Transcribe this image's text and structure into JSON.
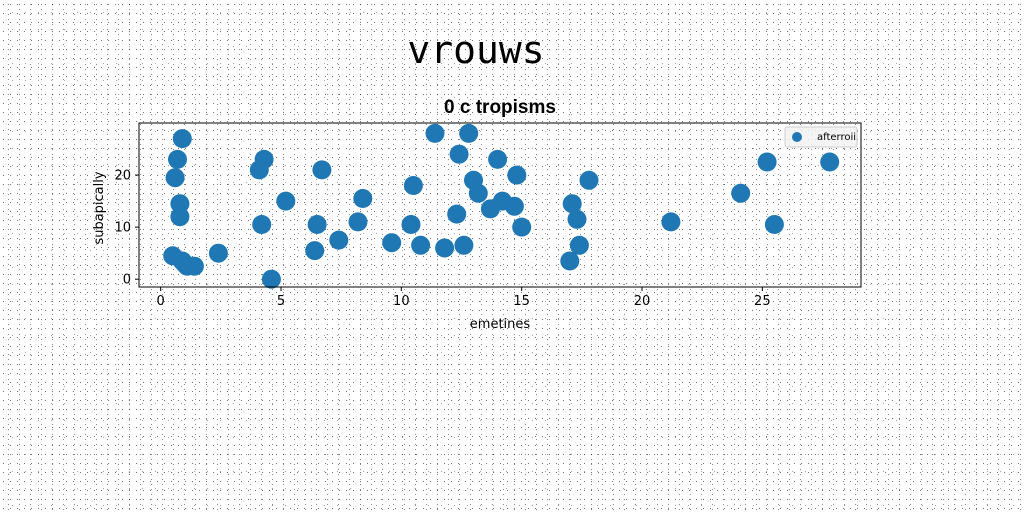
{
  "page_title": "vrouws",
  "chart_data": {
    "type": "scatter",
    "title": "0 c tropisms",
    "xlabel": "emetines",
    "ylabel": "subapically",
    "xlim": [
      -0.9,
      29.1
    ],
    "ylim": [
      -1.5,
      30
    ],
    "xticks": [
      0,
      5,
      10,
      15,
      20,
      25
    ],
    "yticks": [
      0,
      10,
      20
    ],
    "grid": false,
    "legend_position": "top-right",
    "marker_color": "#1f77b4",
    "series": [
      {
        "name": "afterroii",
        "x": [
          0.5,
          0.8,
          0.9,
          0.6,
          0.7,
          0.8,
          0.9,
          1.0,
          1.1,
          1.4,
          2.4,
          4.1,
          4.2,
          4.3,
          4.6,
          5.2,
          6.4,
          6.5,
          6.7,
          7.4,
          8.2,
          8.4,
          9.6,
          10.4,
          10.5,
          10.8,
          11.4,
          11.8,
          12.3,
          12.4,
          12.6,
          12.8,
          13.0,
          13.2,
          13.7,
          14.0,
          14.2,
          14.7,
          14.8,
          15.0,
          17.0,
          17.1,
          17.3,
          17.4,
          17.8,
          21.2,
          24.1,
          25.2,
          25.5,
          27.8
        ],
        "y": [
          4.5,
          12,
          27,
          19.5,
          23,
          14.5,
          3.5,
          3,
          2.5,
          2.5,
          5,
          21,
          10.5,
          23,
          0,
          15,
          5.5,
          10.5,
          21,
          7.5,
          11,
          15.5,
          7,
          10.5,
          18,
          6.5,
          28,
          6,
          12.5,
          24,
          6.5,
          28,
          19,
          16.5,
          13.5,
          23,
          15,
          14,
          20,
          10,
          3.5,
          14.5,
          11.5,
          6.5,
          19,
          11,
          16.5,
          22.5,
          10.5,
          22.5
        ]
      }
    ]
  }
}
